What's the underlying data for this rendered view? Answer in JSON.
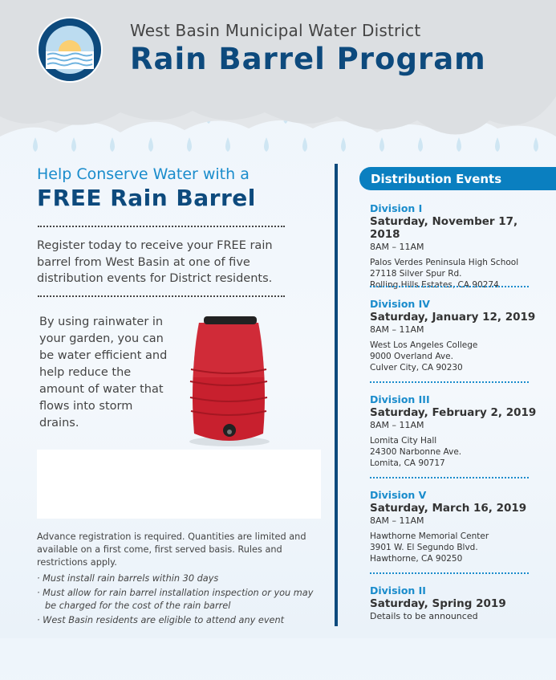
{
  "header": {
    "org": "West Basin Municipal Water District",
    "title": "Rain Barrel Program",
    "logo_text": "WEST BASIN MUNICIPAL WATER DISTRICT"
  },
  "left": {
    "heading_line1": "Help Conserve Water with a",
    "heading_line2": "FREE Rain Barrel",
    "intro": "Register today to receive your FREE rain barrel from West Basin at one of five distribution events for District residents.",
    "body": "By using rainwater in your garden, you can be water efficient and help reduce the amount of water that flows into storm drains.",
    "footer": "Advance registration is required. Quantities are limited and available on a first come, first served basis. Rules and restrictions apply.",
    "bullets": [
      "· Must install rain barrels within 30 days",
      "· Must allow for rain barrel installation inspection or you may be charged for the cost of the rain barrel",
      "· West Basin residents are eligible to attend any event"
    ]
  },
  "events": {
    "title": "Distribution Events",
    "items": [
      {
        "division": "Division I",
        "date": "Saturday, November 17, 2018",
        "time": "8AM – 11AM",
        "place": "Palos Verdes Peninsula High School",
        "street": "27118 Silver Spur Rd.",
        "city": "Rolling Hills Estates, CA 90274"
      },
      {
        "division": "Division IV",
        "date": "Saturday, January 12, 2019",
        "time": "8AM – 11AM",
        "place": "West Los Angeles College",
        "street": "9000 Overland Ave.",
        "city": "Culver City, CA 90230"
      },
      {
        "division": "Division III",
        "date": "Saturday, February 2, 2019",
        "time": "8AM – 11AM",
        "place": "Lomita City Hall",
        "street": "24300 Narbonne Ave.",
        "city": "Lomita, CA 90717"
      },
      {
        "division": "Division V",
        "date": "Saturday, March 16, 2019",
        "time": "8AM – 11AM",
        "place": "Hawthorne Memorial Center",
        "street": "3901 W. El Segundo Blvd.",
        "city": "Hawthorne, CA 90250"
      },
      {
        "division": "Division II",
        "date": "Saturday, Spring 2019",
        "note": "Details to be announced"
      }
    ]
  },
  "colors": {
    "navy": "#0d4a7d",
    "accent": "#0a7fc0",
    "barrel": "#c8202e"
  }
}
